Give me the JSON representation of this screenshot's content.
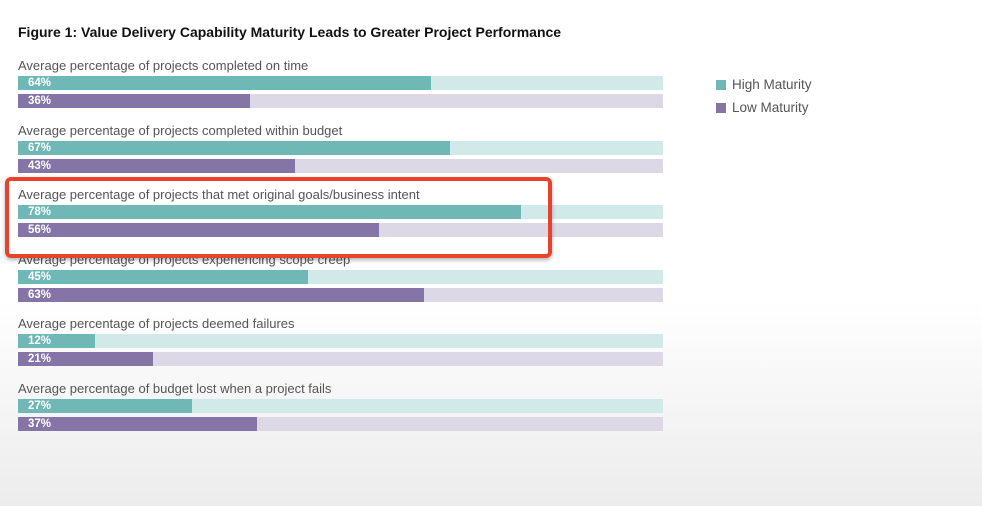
{
  "chart_data": {
    "type": "bar",
    "orientation": "horizontal",
    "title": "Figure 1: Value Delivery Capability Maturity Leads to Greater Project Performance",
    "categories": [
      "Average percentage of projects completed on time",
      "Average percentage of projects completed within budget",
      "Average percentage of projects that met original goals/business intent",
      "Average percentage of projects experiencing scope creep",
      "Average percentage of projects deemed failures",
      "Average percentage of budget lost when a project fails"
    ],
    "series": [
      {
        "name": "High Maturity",
        "values": [
          64,
          67,
          78,
          45,
          12,
          27
        ],
        "color": "#6fb8b5",
        "track": "#d2e9e9"
      },
      {
        "name": "Low Maturity",
        "values": [
          36,
          43,
          56,
          63,
          21,
          37
        ],
        "color": "#8574a6",
        "track": "#dcd8e6"
      }
    ],
    "unit": "%",
    "xlim": [
      0,
      100
    ],
    "legend": "top-right",
    "highlighted_category_index": 2,
    "highlight_color": "#e8412c"
  }
}
